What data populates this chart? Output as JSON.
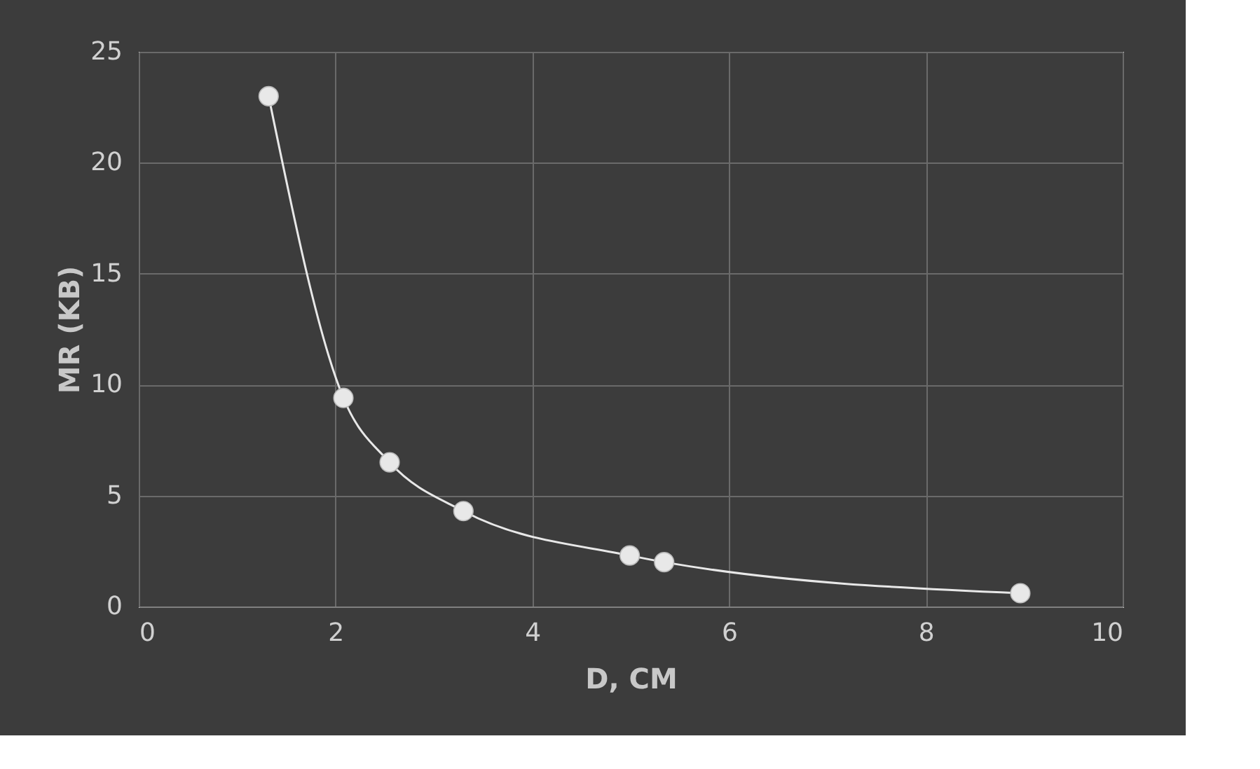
{
  "chart_data": {
    "type": "line",
    "xlabel": "D, CM",
    "ylabel": "MR (KB)",
    "series": [
      {
        "color": "#e8e8e8",
        "x": [
          1.32,
          2.08,
          2.55,
          3.3,
          4.99,
          5.34,
          8.96
        ],
        "values": [
          23.0,
          9.4,
          6.5,
          4.3,
          2.3,
          2.0,
          0.6
        ]
      }
    ],
    "xlim": [
      0,
      10
    ],
    "xticks": [
      0,
      2,
      4,
      6,
      8,
      10
    ],
    "ylim": [
      0,
      25
    ],
    "yticks": [
      0,
      5,
      10,
      15,
      20,
      25
    ],
    "grid": true,
    "marker": "circle",
    "line_style": "solid"
  }
}
